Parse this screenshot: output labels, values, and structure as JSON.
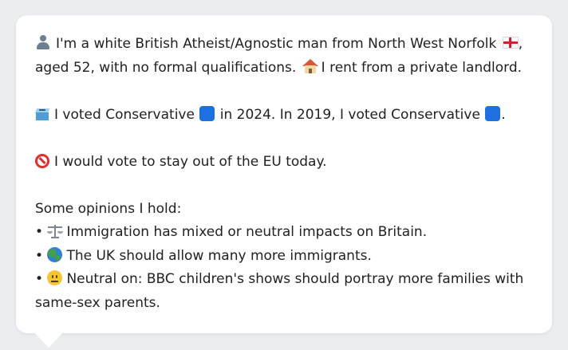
{
  "card": {
    "profile_line1_a": "I'm a white British Atheist/Agnostic man from North West Norfolk",
    "profile_line1_b": ",",
    "profile_line2_a": "aged 52, with no formal qualifications.",
    "profile_line2_b": "I rent from a private landlord.",
    "vote_a": "I voted Conservative",
    "vote_b": "in 2024. In 2019, I voted Conservative",
    "vote_c": ".",
    "eu": "I would vote to stay out of the EU today.",
    "opinions_heading": "Some opinions I hold:",
    "bullet": "•",
    "opinions": [
      "Immigration has mixed or neutral impacts on Britain.",
      "The UK should allow many more immigrants.",
      "Neutral on: BBC children's shows should portray more families with"
    ],
    "opinion3_cont": "same-sex parents."
  },
  "icons": {
    "person": "bust-in-silhouette-icon",
    "flag": "england-flag-icon",
    "house": "house-icon",
    "ballot": "ballot-box-icon",
    "party": "blue-square-icon",
    "no_entry": "no-entry-icon",
    "scales": "balance-scale-icon",
    "globe": "globe-icon",
    "neutral": "neutral-face-icon"
  },
  "colors": {
    "background": "#ebedf0",
    "card": "#ffffff",
    "text": "#202124",
    "conservative_blue": "#1e6fe0"
  }
}
